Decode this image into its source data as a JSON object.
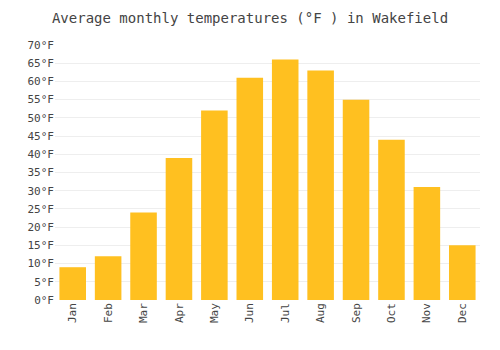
{
  "chart_data": {
    "type": "bar",
    "title": "Average monthly temperatures (°F ) in Wakefield",
    "categories": [
      "Jan",
      "Feb",
      "Mar",
      "Apr",
      "May",
      "Jun",
      "Jul",
      "Aug",
      "Sep",
      "Oct",
      "Nov",
      "Dec"
    ],
    "values": [
      9,
      12,
      24,
      39,
      52,
      61,
      66,
      63,
      55,
      44,
      31,
      15
    ],
    "color": "#FFC020",
    "ylim": [
      0,
      70
    ],
    "yticks": [
      {
        "value": 0,
        "label": "0°F"
      },
      {
        "value": 5,
        "label": "5°F"
      },
      {
        "value": 10,
        "label": "10°F"
      },
      {
        "value": 15,
        "label": "15°F"
      },
      {
        "value": 20,
        "label": "20°F"
      },
      {
        "value": 25,
        "label": "25°F"
      },
      {
        "value": 30,
        "label": "30°F"
      },
      {
        "value": 35,
        "label": "35°F"
      },
      {
        "value": 40,
        "label": "40°F"
      },
      {
        "value": 45,
        "label": "45°F"
      },
      {
        "value": 50,
        "label": "50°F"
      },
      {
        "value": 55,
        "label": "55°F"
      },
      {
        "value": 60,
        "label": "60°F"
      },
      {
        "value": 65,
        "label": "65°F"
      },
      {
        "value": 70,
        "label": "70°F"
      }
    ],
    "grid": true
  }
}
